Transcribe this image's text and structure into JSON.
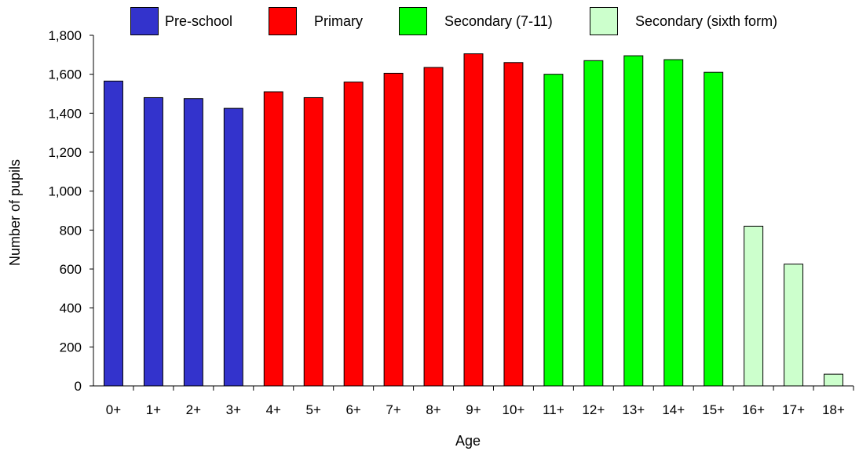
{
  "chart_data": {
    "type": "bar",
    "categories": [
      "0+",
      "1+",
      "2+",
      "3+",
      "4+",
      "5+",
      "6+",
      "7+",
      "8+",
      "9+",
      "10+",
      "11+",
      "12+",
      "13+",
      "14+",
      "15+",
      "16+",
      "17+",
      "18+"
    ],
    "values": [
      1565,
      1480,
      1475,
      1425,
      1510,
      1480,
      1560,
      1605,
      1635,
      1705,
      1660,
      1600,
      1670,
      1695,
      1675,
      1610,
      820,
      625,
      60
    ],
    "group_of_category": [
      0,
      0,
      0,
      0,
      1,
      1,
      1,
      1,
      1,
      1,
      1,
      2,
      2,
      2,
      2,
      2,
      3,
      3,
      3
    ],
    "groups": [
      {
        "name": "Pre-school",
        "color": "#3333cc"
      },
      {
        "name": "Primary",
        "color": "#ff0000"
      },
      {
        "name": "Secondary (7-11)",
        "color": "#00ff00"
      },
      {
        "name": "Secondary (sixth form)",
        "color": "#ccffcc"
      }
    ],
    "xlabel": "Age",
    "ylabel": "Number of pupils",
    "ylim": [
      0,
      1800
    ],
    "yticks": [
      0,
      200,
      400,
      600,
      800,
      1000,
      1200,
      1400,
      1600,
      1800
    ],
    "ytick_labels": [
      "0",
      "200",
      "400",
      "600",
      "800",
      "1,000",
      "1,200",
      "1,400",
      "1,600",
      "1,800"
    ],
    "grid": false,
    "legend_position": "top"
  }
}
